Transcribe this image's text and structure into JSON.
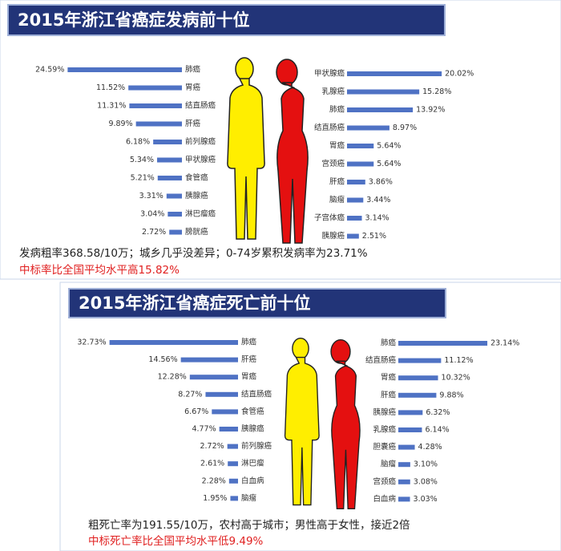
{
  "panels": [
    {
      "title": "2015年浙江省癌症发病前十位",
      "note": "发病粗率368.58/10万；城乡几乎没差异；0-74岁累积发病率为23.71%",
      "highlight": "中标率比全国平均水平高15.82%"
    },
    {
      "title": "2015年浙江省癌症死亡前十位",
      "note": "粗死亡率为191.55/10万，农村高于城市；男性高于女性，接近2倍",
      "highlight": "中标死亡率比全国平均水平低9.49%"
    }
  ],
  "chart_data": [
    {
      "type": "bar",
      "orientation": "horizontal",
      "color": "#4f72c4",
      "categories": [
        "肺癌",
        "胃癌",
        "结直肠癌",
        "肝癌",
        "前列腺癌",
        "甲状腺癌",
        "食管癌",
        "胰腺癌",
        "淋巴瘤癌",
        "膀胱癌"
      ],
      "values": [
        24.59,
        11.52,
        11.31,
        9.89,
        6.18,
        5.34,
        5.21,
        3.31,
        3.04,
        2.72
      ],
      "value_labels": [
        "24.59%",
        "11.52%",
        "11.31%",
        "9.89%",
        "6.18%",
        "5.34%",
        "5.21%",
        "3.31%",
        "3.04%",
        "2.72%"
      ]
    },
    {
      "type": "bar",
      "orientation": "horizontal",
      "color": "#4f72c4",
      "categories": [
        "甲状腺癌",
        "乳腺癌",
        "肺癌",
        "结直肠癌",
        "胃癌",
        "宫颈癌",
        "肝癌",
        "脑瘤",
        "子宫体癌",
        "胰腺癌"
      ],
      "values": [
        20.02,
        15.28,
        13.92,
        8.97,
        5.64,
        5.64,
        3.86,
        3.44,
        3.14,
        2.51
      ],
      "value_labels": [
        "20.02%",
        "15.28%",
        "13.92%",
        "8.97%",
        "5.64%",
        "5.64%",
        "3.86%",
        "3.44%",
        "3.14%",
        "2.51%"
      ]
    },
    {
      "type": "bar",
      "orientation": "horizontal",
      "color": "#4f72c4",
      "categories": [
        "肺癌",
        "肝癌",
        "胃癌",
        "结直肠癌",
        "食管癌",
        "胰腺癌",
        "前列腺癌",
        "淋巴瘤",
        "白血病",
        "脑瘤"
      ],
      "values": [
        32.73,
        14.56,
        12.28,
        8.27,
        6.67,
        4.77,
        2.72,
        2.61,
        2.28,
        1.95
      ],
      "value_labels": [
        "32.73%",
        "14.56%",
        "12.28%",
        "8.27%",
        "6.67%",
        "4.77%",
        "2.72%",
        "2.61%",
        "2.28%",
        "1.95%"
      ]
    },
    {
      "type": "bar",
      "orientation": "horizontal",
      "color": "#4f72c4",
      "categories": [
        "肺癌",
        "结直肠癌",
        "胃癌",
        "肝癌",
        "胰腺癌",
        "乳腺癌",
        "胆囊癌",
        "脑瘤",
        "宫颈癌",
        "白血病"
      ],
      "values": [
        23.14,
        11.12,
        10.32,
        9.88,
        6.32,
        6.14,
        4.28,
        3.1,
        3.08,
        3.03
      ],
      "value_labels": [
        "23.14%",
        "11.12%",
        "10.32%",
        "9.88%",
        "6.32%",
        "6.14%",
        "4.28%",
        "3.10%",
        "3.08%",
        "3.03%"
      ]
    }
  ]
}
